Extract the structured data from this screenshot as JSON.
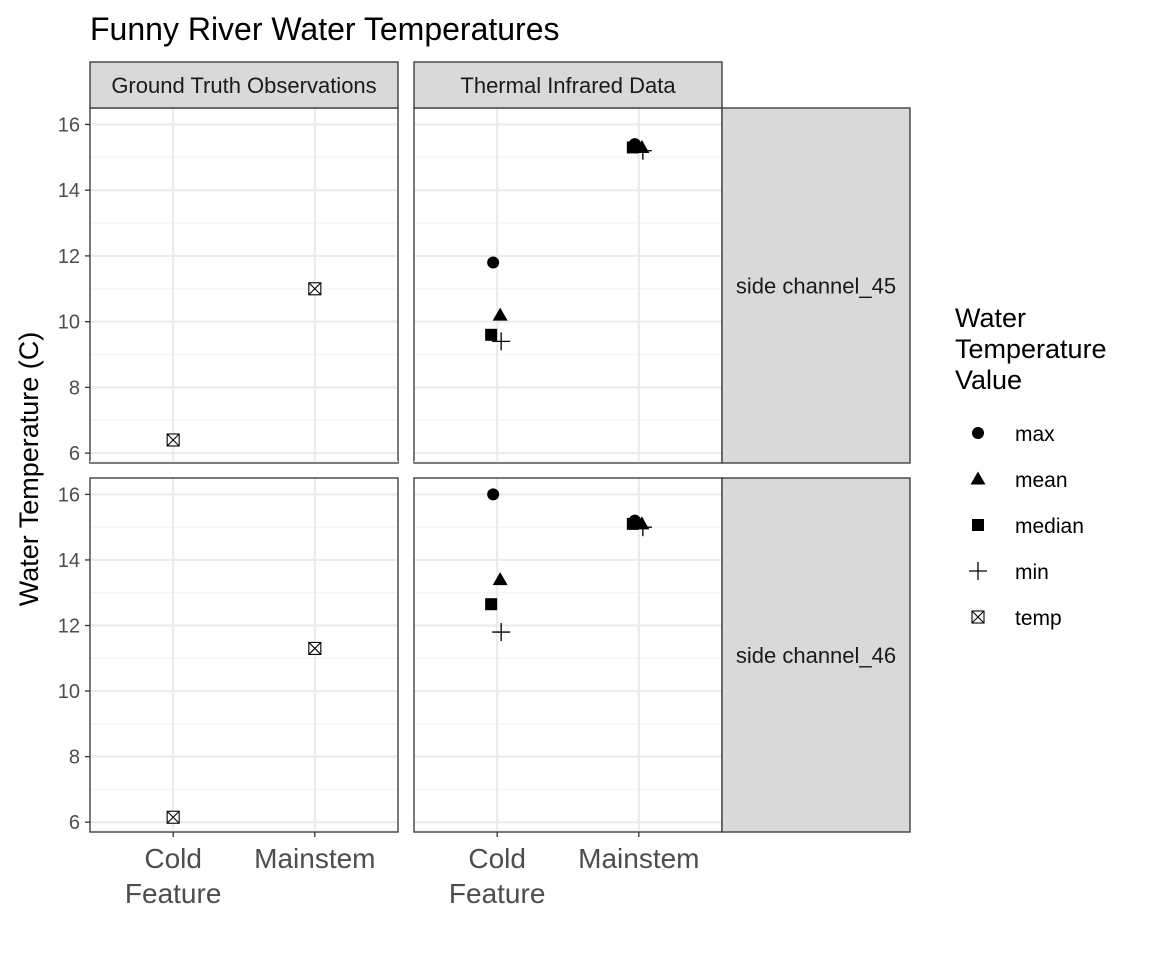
{
  "chart_data": {
    "type": "scatter",
    "title": "Funny River Water Temperatures",
    "xlabel": "",
    "ylabel": "Water Temperature (C)",
    "x_categories": [
      "Cold\nFeature",
      "Mainstem"
    ],
    "y_ticks": [
      6,
      8,
      10,
      12,
      14,
      16
    ],
    "column_facets": [
      "Ground Truth Observations",
      "Thermal Infrared Data"
    ],
    "row_facets": [
      "side channel_45",
      "side channel_46"
    ],
    "grid": true,
    "legend": {
      "title": "Water\nTemperature\nValue",
      "position": "right",
      "entries": [
        {
          "label": "max",
          "shape": "circle"
        },
        {
          "label": "mean",
          "shape": "triangle"
        },
        {
          "label": "median",
          "shape": "square"
        },
        {
          "label": "min",
          "shape": "plus"
        },
        {
          "label": "temp",
          "shape": "boxed-x"
        }
      ]
    },
    "panels": [
      {
        "column": "Ground Truth Observations",
        "row": "side channel_45",
        "ylim": [
          5.7,
          16.5
        ],
        "points": [
          {
            "x": "Cold\nFeature",
            "series": "temp",
            "y": 6.4
          },
          {
            "x": "Mainstem",
            "series": "temp",
            "y": 11.0
          }
        ]
      },
      {
        "column": "Thermal Infrared Data",
        "row": "side channel_45",
        "ylim": [
          5.7,
          16.5
        ],
        "points": [
          {
            "x": "Cold\nFeature",
            "series": "max",
            "y": 11.8
          },
          {
            "x": "Cold\nFeature",
            "series": "mean",
            "y": 10.2
          },
          {
            "x": "Cold\nFeature",
            "series": "median",
            "y": 9.6
          },
          {
            "x": "Cold\nFeature",
            "series": "min",
            "y": 9.4
          },
          {
            "x": "Mainstem",
            "series": "max",
            "y": 15.4
          },
          {
            "x": "Mainstem",
            "series": "mean",
            "y": 15.3
          },
          {
            "x": "Mainstem",
            "series": "median",
            "y": 15.3
          },
          {
            "x": "Mainstem",
            "series": "min",
            "y": 15.2
          }
        ]
      },
      {
        "column": "Ground Truth Observations",
        "row": "side channel_46",
        "ylim": [
          5.7,
          16.5
        ],
        "points": [
          {
            "x": "Cold\nFeature",
            "series": "temp",
            "y": 6.15
          },
          {
            "x": "Mainstem",
            "series": "temp",
            "y": 11.3
          }
        ]
      },
      {
        "column": "Thermal Infrared Data",
        "row": "side channel_46",
        "ylim": [
          5.7,
          16.5
        ],
        "points": [
          {
            "x": "Cold\nFeature",
            "series": "max",
            "y": 16.0
          },
          {
            "x": "Cold\nFeature",
            "series": "mean",
            "y": 13.4
          },
          {
            "x": "Cold\nFeature",
            "series": "median",
            "y": 12.65
          },
          {
            "x": "Cold\nFeature",
            "series": "min",
            "y": 11.8
          },
          {
            "x": "Mainstem",
            "series": "max",
            "y": 15.2
          },
          {
            "x": "Mainstem",
            "series": "mean",
            "y": 15.1
          },
          {
            "x": "Mainstem",
            "series": "median",
            "y": 15.1
          },
          {
            "x": "Mainstem",
            "series": "min",
            "y": 15.0
          }
        ]
      }
    ]
  }
}
